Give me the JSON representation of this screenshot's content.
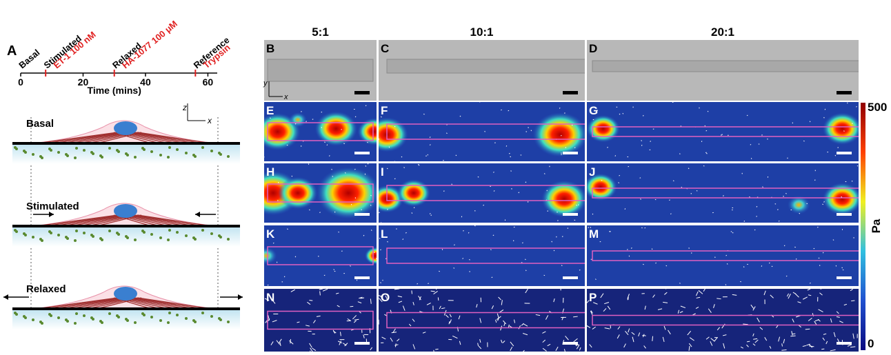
{
  "panel_a": {
    "label": "A",
    "timeline": {
      "xlim": [
        0,
        63
      ],
      "xticks": [
        0,
        20,
        40,
        60
      ],
      "xlabel": "Time (mins)",
      "events": [
        {
          "name": "Basal",
          "time": 0
        },
        {
          "name": "Stimulated",
          "treatment": "ET-1 100 nM",
          "time": 8
        },
        {
          "name": "Relaxed",
          "treatment": "HA-1077 100 μM",
          "time": 30
        },
        {
          "name": "Reference",
          "treatment": "Trypsin",
          "time": 56
        }
      ]
    },
    "axes": {
      "vertical": "z",
      "horizontal": "x"
    },
    "schematic": [
      "Basal",
      "Stimulated",
      "Relaxed"
    ]
  },
  "columns": [
    "5:1",
    "10:1",
    "20:1"
  ],
  "panels": [
    [
      "B",
      "C",
      "D"
    ],
    [
      "E",
      "F",
      "G"
    ],
    [
      "H",
      "I",
      "J"
    ],
    [
      "K",
      "L",
      "M"
    ],
    [
      "N",
      "O",
      "P"
    ]
  ],
  "brightfield_axes": {
    "vertical": "y",
    "horizontal": "x"
  },
  "colorbar": {
    "lim": [
      0,
      500
    ],
    "ticks": [
      0,
      500
    ],
    "unit": "Pa"
  }
}
